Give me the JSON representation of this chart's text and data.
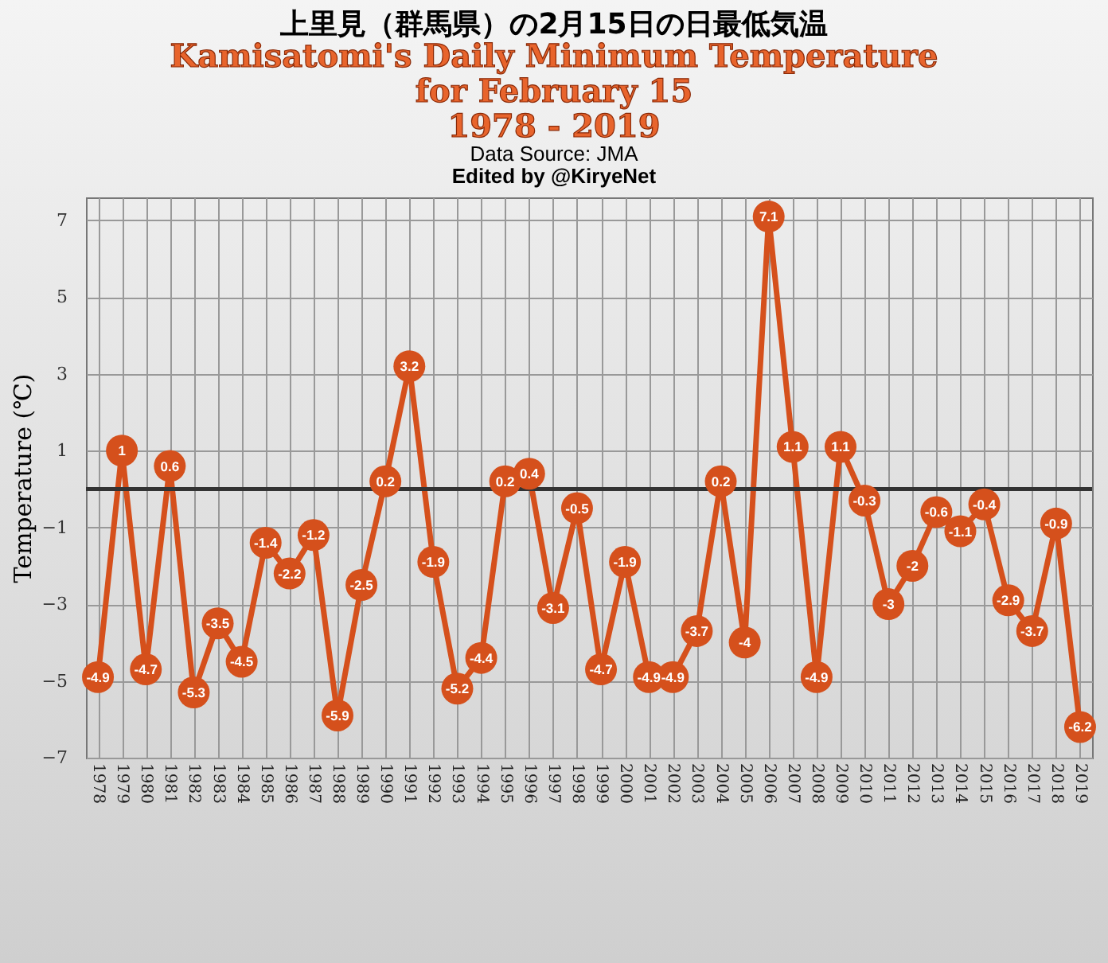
{
  "chart_data": {
    "type": "line",
    "title": "上里見（群馬県）の2月15日の日最低気温",
    "subtitle": "Kamisatomi's Daily Minimum Temperature\nfor February 15\n1978 - 2019",
    "annotations": [
      "Data Source: JMA",
      "Edited by @KiryeNet"
    ],
    "ylabel": "Temperature (℃)",
    "categories": [
      "1978",
      "1979",
      "1980",
      "1981",
      "1982",
      "1983",
      "1984",
      "1985",
      "1986",
      "1987",
      "1988",
      "1989",
      "1990",
      "1991",
      "1992",
      "1993",
      "1994",
      "1995",
      "1996",
      "1997",
      "1998",
      "1999",
      "2000",
      "2001",
      "2002",
      "2003",
      "2004",
      "2005",
      "2006",
      "2007",
      "2008",
      "2009",
      "2010",
      "2011",
      "2012",
      "2013",
      "2014",
      "2015",
      "2016",
      "2017",
      "2018",
      "2019"
    ],
    "series": [
      {
        "color": "#d5501c",
        "values": [
          -4.9,
          1,
          -4.7,
          0.6,
          -5.3,
          -3.5,
          -4.5,
          -1.4,
          -2.2,
          -1.2,
          -5.9,
          -2.5,
          0.2,
          3.2,
          -1.9,
          -5.2,
          -4.4,
          0.2,
          0.4,
          -3.1,
          -0.5,
          -4.7,
          -1.9,
          -4.9,
          -4.9,
          -3.7,
          0.2,
          -4,
          7.1,
          1.1,
          -4.9,
          1.1,
          -0.3,
          -3,
          -2,
          -0.6,
          -1.1,
          -0.4,
          -2.9,
          -3.7,
          -0.9,
          -6.2
        ]
      }
    ],
    "ylim": [
      -7,
      7.6
    ],
    "yticks": [
      -7,
      -5,
      -3,
      -1,
      1,
      3,
      5,
      7
    ],
    "grid": true,
    "marker": "circle",
    "line_style": "solid",
    "data_labels": true,
    "ref_lines": [
      {
        "axis": "y",
        "value": 0,
        "color": "#333333"
      }
    ]
  }
}
